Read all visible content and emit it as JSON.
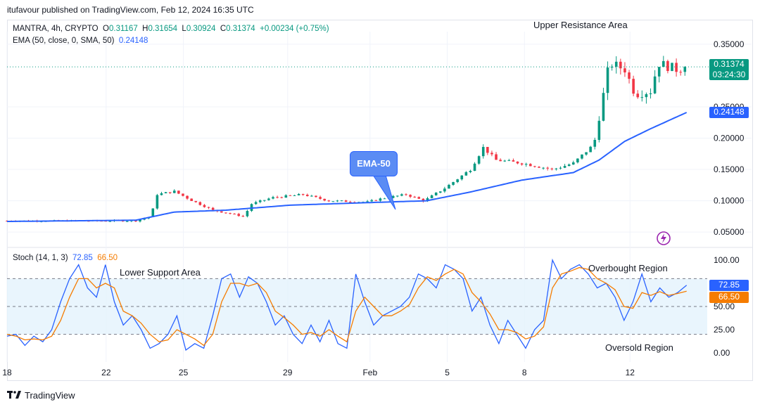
{
  "header": {
    "published_by": "itufavour published on TradingView.com, Feb 12, 2024 16:35 UTC"
  },
  "legend": {
    "symbol": "MANTRA, 4h, CRYPTO",
    "open_label": "O",
    "open": "0.31167",
    "high_label": "H",
    "high": "0.31654",
    "low_label": "L",
    "low": "0.30924",
    "close_label": "C",
    "close": "0.31374",
    "change": "+0.00234 (+0.75%)",
    "ema_label": "EMA (50, close, 0, SMA, 50)",
    "ema_value": "0.24148"
  },
  "stoch_legend": {
    "label": "Stoch (14, 1, 3)",
    "k_value": "72.85",
    "d_value": "66.50"
  },
  "price_axis": {
    "ticks": [
      "0.35000",
      "0.25000",
      "0.20000",
      "0.15000",
      "0.10000",
      "0.05000"
    ],
    "tick_values": [
      0.35,
      0.25,
      0.2,
      0.15,
      0.1,
      0.05
    ],
    "last_price_tag": "0.31374",
    "countdown_tag": "03:24:30",
    "ema_tag": "0.24148"
  },
  "stoch_axis": {
    "ticks": [
      "100.00",
      "75.00",
      "50.00",
      "25.00",
      "0.00"
    ],
    "tick_values": [
      100,
      75,
      50,
      25,
      0
    ],
    "k_tag": "72.85",
    "d_tag": "66.50"
  },
  "time_axis": {
    "ticks": [
      "18",
      "22",
      "25",
      "29",
      "Feb",
      "5",
      "8",
      "12"
    ]
  },
  "annotations": {
    "upper_resistance": "Upper Resistance Area",
    "lower_support": "Lower Support Area",
    "overbought": "Overbought Region",
    "oversold": "Oversold Region",
    "ema_bubble": "EMA-50"
  },
  "footer": {
    "brand": "TradingView"
  },
  "colors": {
    "up": "#089981",
    "down": "#f23645",
    "ema": "#2962ff",
    "stoch_k": "#2962ff",
    "stoch_d": "#f57c00",
    "stoch_band": "#e3f2fd"
  },
  "chart_data": [
    {
      "type": "candlestick",
      "title": "MANTRA, 4h, CRYPTO",
      "ylim": [
        0.03,
        0.37
      ],
      "x_range_days": [
        "Jan 18",
        "Feb 12"
      ],
      "close_path_keypoints": [
        {
          "t": 0.0,
          "v": 0.068
        },
        {
          "t": 5.0,
          "v": 0.068
        },
        {
          "t": 5.6,
          "v": 0.075
        },
        {
          "t": 5.8,
          "v": 0.11
        },
        {
          "t": 6.5,
          "v": 0.115
        },
        {
          "t": 7.2,
          "v": 0.1
        },
        {
          "t": 8.0,
          "v": 0.085
        },
        {
          "t": 9.2,
          "v": 0.075
        },
        {
          "t": 9.5,
          "v": 0.095
        },
        {
          "t": 10.3,
          "v": 0.105
        },
        {
          "t": 11.5,
          "v": 0.11
        },
        {
          "t": 12.5,
          "v": 0.1
        },
        {
          "t": 14.0,
          "v": 0.098
        },
        {
          "t": 14.6,
          "v": 0.104
        },
        {
          "t": 15.5,
          "v": 0.11
        },
        {
          "t": 16.2,
          "v": 0.1
        },
        {
          "t": 17.0,
          "v": 0.12
        },
        {
          "t": 18.0,
          "v": 0.15
        },
        {
          "t": 18.5,
          "v": 0.185
        },
        {
          "t": 19.0,
          "v": 0.165
        },
        {
          "t": 20.0,
          "v": 0.16
        },
        {
          "t": 21.2,
          "v": 0.15
        },
        {
          "t": 22.0,
          "v": 0.16
        },
        {
          "t": 22.8,
          "v": 0.19
        },
        {
          "t": 23.4,
          "v": 0.32
        },
        {
          "t": 24.0,
          "v": 0.31
        },
        {
          "t": 24.4,
          "v": 0.27
        },
        {
          "t": 25.0,
          "v": 0.275
        },
        {
          "t": 25.3,
          "v": 0.32
        },
        {
          "t": 26.0,
          "v": 0.31
        },
        {
          "t": 26.4,
          "v": 0.314
        }
      ],
      "ema50": {
        "name": "EMA (50, close, 0, SMA, 50)",
        "keypoints": [
          {
            "t": 0.0,
            "v": 0.067
          },
          {
            "t": 5.0,
            "v": 0.069
          },
          {
            "t": 6.5,
            "v": 0.082
          },
          {
            "t": 8.5,
            "v": 0.085
          },
          {
            "t": 11.0,
            "v": 0.093
          },
          {
            "t": 14.0,
            "v": 0.097
          },
          {
            "t": 16.3,
            "v": 0.1
          },
          {
            "t": 18.0,
            "v": 0.114
          },
          {
            "t": 20.0,
            "v": 0.133
          },
          {
            "t": 22.0,
            "v": 0.145
          },
          {
            "t": 23.0,
            "v": 0.165
          },
          {
            "t": 24.0,
            "v": 0.195
          },
          {
            "t": 25.0,
            "v": 0.215
          },
          {
            "t": 26.4,
            "v": 0.241
          }
        ]
      }
    },
    {
      "type": "line",
      "title": "Stoch (14, 1, 3)",
      "ylim": [
        0,
        100
      ],
      "bands": [
        20,
        50,
        80
      ],
      "series": [
        {
          "name": "%K",
          "last": 72.85,
          "values": [
            18,
            20,
            8,
            18,
            12,
            25,
            55,
            80,
            95,
            70,
            60,
            95,
            55,
            30,
            40,
            25,
            5,
            10,
            20,
            40,
            3,
            10,
            5,
            40,
            80,
            85,
            60,
            82,
            75,
            55,
            30,
            40,
            20,
            10,
            30,
            12,
            35,
            10,
            5,
            85,
            55,
            30,
            40,
            45,
            50,
            60,
            85,
            80,
            70,
            95,
            90,
            80,
            45,
            60,
            30,
            10,
            35,
            20,
            5,
            25,
            35,
            100,
            80,
            90,
            95,
            85,
            70,
            75,
            60,
            35,
            55,
            85,
            55,
            70,
            60,
            65,
            72.85
          ]
        },
        {
          "name": "%D",
          "last": 66.5,
          "values": [
            20,
            18,
            14,
            15,
            14,
            18,
            35,
            60,
            80,
            80,
            70,
            75,
            70,
            45,
            40,
            32,
            20,
            12,
            14,
            25,
            20,
            15,
            8,
            20,
            55,
            75,
            75,
            72,
            75,
            65,
            45,
            38,
            30,
            20,
            22,
            18,
            25,
            18,
            12,
            45,
            60,
            50,
            40,
            40,
            45,
            52,
            70,
            82,
            78,
            85,
            90,
            85,
            65,
            55,
            42,
            25,
            25,
            22,
            15,
            18,
            28,
            70,
            85,
            88,
            92,
            90,
            80,
            75,
            68,
            50,
            48,
            65,
            62,
            66,
            62,
            64,
            66.5
          ]
        }
      ]
    }
  ]
}
